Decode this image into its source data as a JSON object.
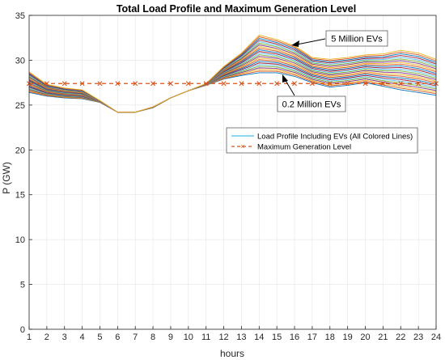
{
  "chart_data": {
    "type": "line",
    "title": "Total Load Profile and Maximum Generation Level",
    "xlabel": "hours",
    "ylabel": "P (GW)",
    "xlim": [
      1,
      24
    ],
    "ylim": [
      0,
      35
    ],
    "xticks": [
      1,
      2,
      3,
      4,
      5,
      6,
      7,
      8,
      9,
      10,
      11,
      12,
      13,
      14,
      15,
      16,
      17,
      18,
      19,
      20,
      21,
      22,
      23,
      24
    ],
    "yticks": [
      0,
      5,
      10,
      15,
      20,
      25,
      30,
      35
    ],
    "grid": true,
    "legend_position": "center-right",
    "x": [
      1,
      2,
      3,
      4,
      5,
      6,
      7,
      8,
      9,
      10,
      11,
      12,
      13,
      14,
      15,
      16,
      17,
      18,
      19,
      20,
      21,
      22,
      23,
      24
    ],
    "load_profile_min": [
      26.4,
      26.0,
      25.8,
      25.7,
      25.3,
      24.2,
      24.2,
      24.7,
      25.8,
      26.6,
      27.2,
      27.9,
      28.3,
      28.6,
      28.6,
      28.2,
      27.5,
      27.0,
      27.2,
      27.5,
      27.1,
      26.7,
      26.4,
      26.1
    ],
    "load_profile_max": [
      28.7,
      27.3,
      26.9,
      26.7,
      25.5,
      24.2,
      24.2,
      24.8,
      25.8,
      26.6,
      27.4,
      29.3,
      30.8,
      32.8,
      32.3,
      31.6,
      30.3,
      30.1,
      30.3,
      30.6,
      30.7,
      31.1,
      30.8,
      30.1
    ],
    "num_load_curves": 24,
    "max_generation": [
      27.4,
      27.4,
      27.4,
      27.4,
      27.4,
      27.4,
      27.4,
      27.4,
      27.4,
      27.4,
      27.4,
      27.4,
      27.4,
      27.4,
      27.4,
      27.4,
      27.4,
      27.4,
      27.4,
      27.4,
      27.4,
      27.4,
      27.4,
      27.4
    ],
    "legend": {
      "load_label": "Load Profile Including EVs (All Colored Lines)",
      "generation_label": "Maximum Generation Level"
    },
    "annotations": [
      {
        "text": "5 Million EVs",
        "x": 15.5,
        "y": 32.2
      },
      {
        "text": "0.2 Million EVs",
        "x": 15.6,
        "y": 28.6
      }
    ],
    "colors": {
      "load_palette": [
        "#0072BD",
        "#D95319",
        "#EDB120",
        "#7E2F8E",
        "#77AC30",
        "#4DBEEE",
        "#A2142F"
      ],
      "generation": "#D95319",
      "grid": "#e6e6e6"
    }
  }
}
